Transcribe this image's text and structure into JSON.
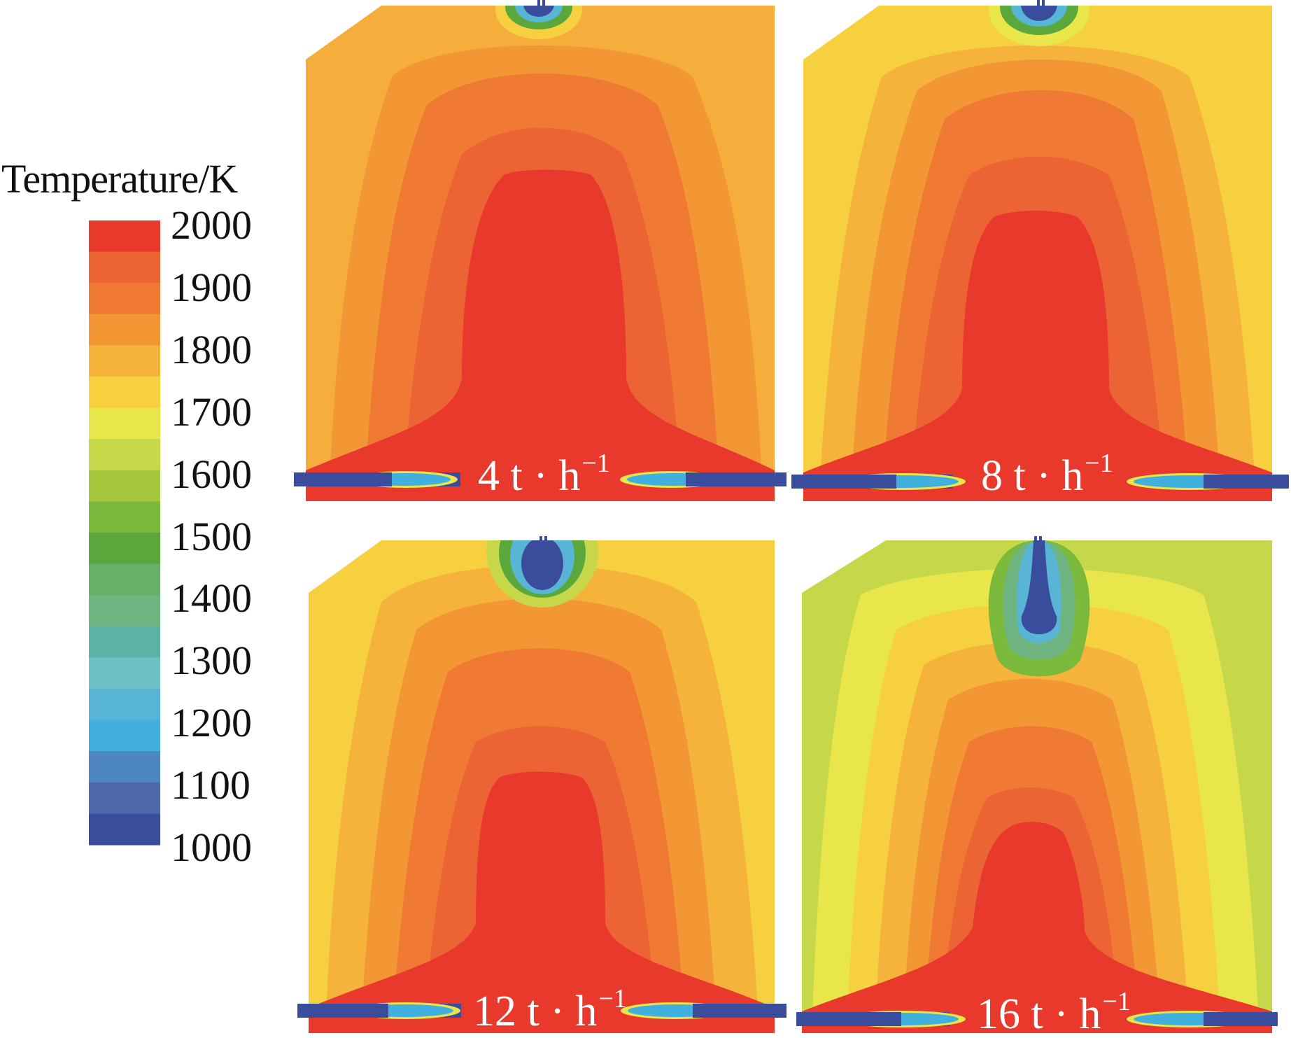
{
  "colorbar": {
    "title": "Temperature/K",
    "min": 1000,
    "max": 2000,
    "ticks": [
      "2000",
      "1900",
      "1800",
      "1700",
      "1600",
      "1500",
      "1400",
      "1300",
      "1200",
      "1100",
      "1000"
    ],
    "colors": [
      "#e8392c",
      "#ec6433",
      "#f07a33",
      "#f39734",
      "#f5b33c",
      "#f7d040",
      "#e9e64b",
      "#c6d84a",
      "#a5c83e",
      "#7ab93b",
      "#5aa83c",
      "#66b067",
      "#6eb582",
      "#5cb3a5",
      "#6cc1c4",
      "#59b5d6",
      "#41b0df",
      "#4d86c1",
      "#4e6aab",
      "#3a4c9c"
    ]
  },
  "panels": [
    {
      "label": "4 t · h",
      "exponent": "−1"
    },
    {
      "label": "8 t · h",
      "exponent": "−1"
    },
    {
      "label": "12 t · h",
      "exponent": "−1"
    },
    {
      "label": "16 t · h",
      "exponent": "−1"
    }
  ]
}
